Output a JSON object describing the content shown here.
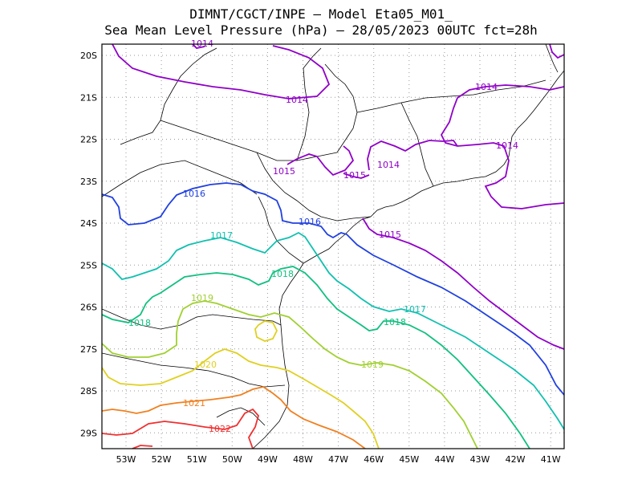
{
  "title": {
    "line1": "DIMNT/CGCT/INPE –  Model Eta05_M01_",
    "line2": "Sea Mean Level Pressure (hPa) – 28/05/2023 00UTC fct=28h"
  },
  "lat_ticks": [
    "20S",
    "21S",
    "22S",
    "23S",
    "24S",
    "25S",
    "26S",
    "27S",
    "28S",
    "29S"
  ],
  "lon_ticks": [
    "53W",
    "52W",
    "51W",
    "50W",
    "49W",
    "48W",
    "47W",
    "46W",
    "45W",
    "44W",
    "43W",
    "42W",
    "41W"
  ],
  "colors": {
    "1014": "#9000c8",
    "1015": "#9000c8",
    "1016": "#2040e0",
    "1017": "#10c0b0",
    "1018": "#10c080",
    "1019": "#a0d030",
    "1020": "#e0d020",
    "1021": "#f08020",
    "1022": "#f03030",
    "coast": "#000000",
    "grid": "#999999"
  },
  "contour_labels": [
    {
      "text": "1014",
      "color": "1014"
    },
    {
      "text": "1014",
      "color": "1014"
    },
    {
      "text": "1014",
      "color": "1014"
    },
    {
      "text": "1014",
      "color": "1014"
    },
    {
      "text": "1014",
      "color": "1014"
    },
    {
      "text": "1015",
      "color": "1015"
    },
    {
      "text": "1015",
      "color": "1015"
    },
    {
      "text": "1015",
      "color": "1015"
    },
    {
      "text": "1016",
      "color": "1016"
    },
    {
      "text": "1016",
      "color": "1016"
    },
    {
      "text": "1017",
      "color": "1017"
    },
    {
      "text": "1017",
      "color": "1017"
    },
    {
      "text": "1018",
      "color": "1018"
    },
    {
      "text": "1018",
      "color": "1018"
    },
    {
      "text": "1018",
      "color": "1018"
    },
    {
      "text": "1019",
      "color": "1019"
    },
    {
      "text": "1019",
      "color": "1019"
    },
    {
      "text": "1020",
      "color": "1020"
    },
    {
      "text": "1021",
      "color": "1021"
    },
    {
      "text": "1022",
      "color": "1022"
    }
  ]
}
